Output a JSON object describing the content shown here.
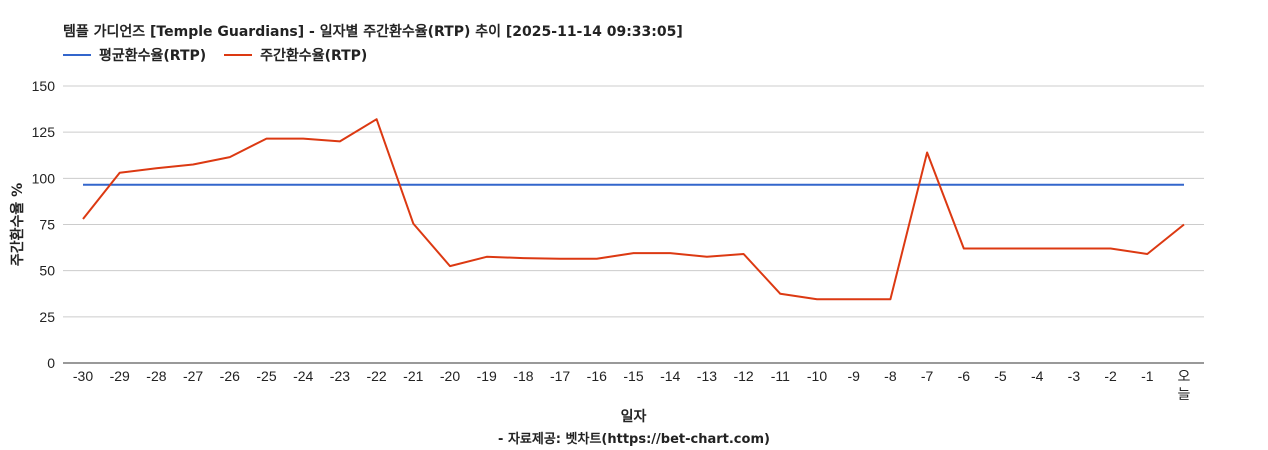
{
  "chart_data": {
    "type": "line",
    "title": "템플 가디언즈 [Temple Guardians] - 일자별 주간환수율(RTP) 추이 [2025-11-14 09:33:05]",
    "xlabel": "일자",
    "ylabel": "주간환수율 %",
    "source": "- 자료제공: 벳차트(https://bet-chart.com)",
    "legend_position": "top-left",
    "grid": true,
    "ylim": [
      0,
      150
    ],
    "yticks": [
      0,
      25,
      50,
      75,
      100,
      125,
      150
    ],
    "categories": [
      "-30",
      "-29",
      "-28",
      "-27",
      "-26",
      "-25",
      "-24",
      "-23",
      "-22",
      "-21",
      "-20",
      "-19",
      "-18",
      "-17",
      "-16",
      "-15",
      "-14",
      "-13",
      "-12",
      "-11",
      "-10",
      "-9",
      "-8",
      "-7",
      "-6",
      "-5",
      "-4",
      "-3",
      "-2",
      "-1",
      "오늘"
    ],
    "series": [
      {
        "name": "평균환수율(RTP)",
        "color": "#3366cc",
        "values": [
          96.5,
          96.5,
          96.5,
          96.5,
          96.5,
          96.5,
          96.5,
          96.5,
          96.5,
          96.5,
          96.5,
          96.5,
          96.5,
          96.5,
          96.5,
          96.5,
          96.5,
          96.5,
          96.5,
          96.5,
          96.5,
          96.5,
          96.5,
          96.5,
          96.5,
          96.5,
          96.5,
          96.5,
          96.5,
          96.5,
          96.5
        ]
      },
      {
        "name": "주간환수율(RTP)",
        "color": "#dc3912",
        "values": [
          78,
          103,
          105.5,
          107.5,
          111.5,
          121.5,
          121.5,
          120,
          132,
          75.5,
          52.5,
          57.5,
          56.8,
          56.5,
          56.5,
          59.5,
          59.5,
          57.5,
          59,
          37.5,
          34.5,
          34.5,
          34.5,
          114,
          62,
          62,
          62,
          62,
          62,
          59,
          75
        ]
      }
    ]
  }
}
